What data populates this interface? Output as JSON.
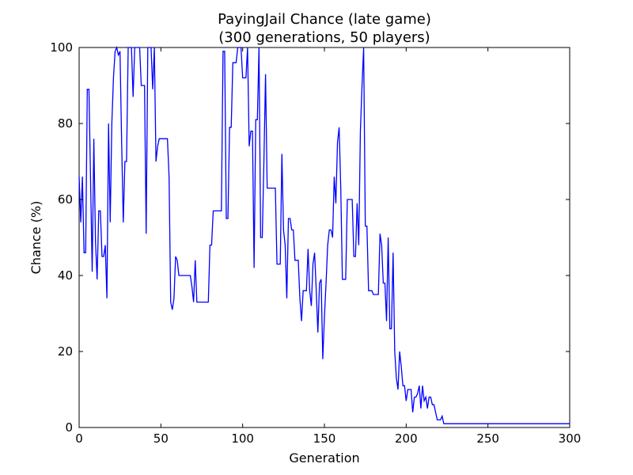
{
  "chart_data": {
    "type": "line",
    "title": "PayingJail Chance (late game)",
    "subtitle": "(300 generations, 50 players)",
    "xlabel": "Generation",
    "ylabel": "Chance (%)",
    "xlim": [
      0,
      300
    ],
    "ylim": [
      0,
      100
    ],
    "xticks": [
      0,
      50,
      100,
      150,
      200,
      250,
      300
    ],
    "yticks": [
      0,
      20,
      40,
      60,
      80,
      100
    ],
    "grid": false,
    "line_color": "#0000ff",
    "series": [
      {
        "x": [
          0,
          1,
          2,
          3,
          4,
          5,
          6,
          7,
          8,
          9,
          10,
          11,
          12,
          13,
          14,
          15,
          16,
          17,
          18,
          19,
          20,
          21,
          22,
          23,
          24,
          25,
          26,
          27,
          28,
          29,
          30,
          31,
          32,
          33,
          34,
          35,
          36,
          37,
          38,
          39,
          40,
          41,
          42,
          43,
          44,
          45,
          46,
          47,
          48,
          49,
          50,
          51,
          52,
          53,
          54,
          55,
          56,
          57,
          58,
          59,
          60,
          61,
          62,
          63,
          64,
          65,
          66,
          67,
          68,
          69,
          70,
          71,
          72,
          73,
          74,
          75,
          76,
          77,
          78,
          79,
          80,
          81,
          82,
          83,
          84,
          85,
          86,
          87,
          88,
          89,
          90,
          91,
          92,
          93,
          94,
          95,
          96,
          97,
          98,
          99,
          100,
          101,
          102,
          103,
          104,
          105,
          106,
          107,
          108,
          109,
          110,
          111,
          112,
          113,
          114,
          115,
          116,
          117,
          118,
          119,
          120,
          121,
          122,
          123,
          124,
          125,
          126,
          127,
          128,
          129,
          130,
          131,
          132,
          133,
          134,
          135,
          136,
          137,
          138,
          139,
          140,
          141,
          142,
          143,
          144,
          145,
          146,
          147,
          148,
          149,
          150,
          151,
          152,
          153,
          154,
          155,
          156,
          157,
          158,
          159,
          160,
          161,
          162,
          163,
          164,
          165,
          166,
          167,
          168,
          169,
          170,
          171,
          172,
          173,
          174,
          175,
          176,
          177,
          178,
          179,
          180,
          181,
          182,
          183,
          184,
          185,
          186,
          187,
          188,
          189,
          190,
          191,
          192,
          193,
          194,
          195,
          196,
          197,
          198,
          199,
          200,
          201,
          202,
          203,
          204,
          205,
          206,
          207,
          208,
          209,
          210,
          211,
          212,
          213,
          214,
          215,
          216,
          217,
          218,
          219,
          220,
          221,
          222,
          223,
          300
        ],
        "values": [
          66,
          54,
          66,
          46,
          46,
          89,
          89,
          65,
          41,
          76,
          49,
          39,
          57,
          57,
          45,
          45,
          48,
          34,
          80,
          54,
          80,
          92,
          99,
          100,
          98,
          99,
          75,
          54,
          70,
          70,
          100,
          100,
          100,
          87,
          100,
          100,
          100,
          100,
          90,
          90,
          90,
          51,
          100,
          100,
          100,
          89,
          100,
          70,
          74,
          76,
          76,
          76,
          76,
          76,
          76,
          66,
          33,
          31,
          34,
          45,
          44,
          40,
          40,
          40,
          40,
          40,
          40,
          40,
          40,
          37,
          33,
          44,
          33,
          33,
          33,
          33,
          33,
          33,
          33,
          33,
          48,
          48,
          57,
          57,
          57,
          57,
          57,
          57,
          99,
          99,
          55,
          55,
          79,
          79,
          96,
          96,
          96,
          100,
          100,
          100,
          92,
          92,
          92,
          100,
          74,
          78,
          78,
          42,
          81,
          81,
          100,
          50,
          50,
          70,
          93,
          63,
          63,
          63,
          63,
          63,
          63,
          43,
          43,
          43,
          72,
          52,
          48,
          34,
          55,
          55,
          52,
          52,
          44,
          44,
          44,
          34,
          28,
          36,
          36,
          36,
          47,
          36,
          32,
          43,
          46,
          36,
          25,
          38,
          39,
          18,
          29,
          38,
          48,
          52,
          52,
          50,
          66,
          59,
          75,
          79,
          63,
          39,
          39,
          39,
          60,
          60,
          60,
          60,
          45,
          45,
          59,
          48,
          78,
          90,
          100,
          53,
          53,
          36,
          36,
          36,
          35,
          35,
          35,
          35,
          51,
          48,
          38,
          38,
          28,
          50,
          26,
          26,
          46,
          20,
          13,
          10,
          20,
          16,
          11,
          11,
          7,
          10,
          10,
          10,
          4,
          8,
          8,
          9,
          11,
          5,
          11,
          7,
          8,
          5,
          8,
          8,
          6,
          6,
          4,
          2,
          2,
          2,
          3,
          1,
          1
        ]
      }
    ]
  }
}
